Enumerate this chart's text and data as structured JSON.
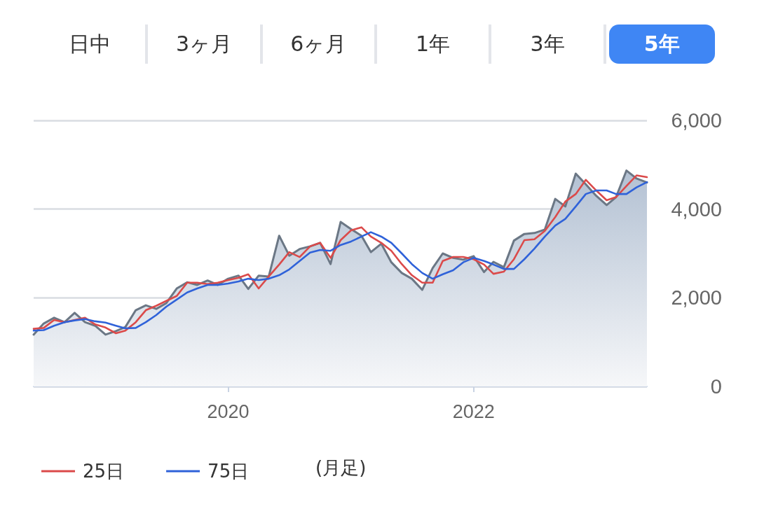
{
  "chart_data": {
    "type": "area",
    "annotations": [
      "日中",
      "3ヶ月",
      "6ヶ月",
      "1年",
      "3年",
      "5年",
      "(月足)"
    ],
    "x": [
      "2018-06",
      "2018-07",
      "2018-08",
      "2018-09",
      "2018-10",
      "2018-11",
      "2018-12",
      "2019-01",
      "2019-02",
      "2019-03",
      "2019-04",
      "2019-05",
      "2019-06",
      "2019-07",
      "2019-08",
      "2019-09",
      "2019-10",
      "2019-11",
      "2019-12",
      "2020-01",
      "2020-02",
      "2020-03",
      "2020-04",
      "2020-05",
      "2020-06",
      "2020-07",
      "2020-08",
      "2020-09",
      "2020-10",
      "2020-11",
      "2020-12",
      "2021-01",
      "2021-02",
      "2021-03",
      "2021-04",
      "2021-05",
      "2021-06",
      "2021-07",
      "2021-08",
      "2021-09",
      "2021-10",
      "2021-11",
      "2021-12",
      "2022-01",
      "2022-02",
      "2022-03",
      "2022-04",
      "2022-05",
      "2022-06",
      "2022-07",
      "2022-08",
      "2022-09",
      "2022-10",
      "2022-11",
      "2022-12",
      "2023-01",
      "2023-02",
      "2023-03",
      "2023-04",
      "2023-05",
      "2023-06"
    ],
    "series": [
      {
        "color": "#6b7785",
        "values": [
          1170,
          1420,
          1550,
          1450,
          1660,
          1450,
          1370,
          1170,
          1250,
          1340,
          1720,
          1830,
          1750,
          1880,
          2210,
          2350,
          2290,
          2390,
          2290,
          2430,
          2500,
          2200,
          2500,
          2480,
          3400,
          2950,
          3100,
          3160,
          3240,
          2760,
          3710,
          3550,
          3400,
          3030,
          3220,
          2800,
          2560,
          2430,
          2180,
          2670,
          3000,
          2900,
          2860,
          2940,
          2580,
          2810,
          2690,
          3290,
          3440,
          3460,
          3540,
          4230,
          4060,
          4800,
          4560,
          4300,
          4090,
          4270,
          4870,
          4690,
          4600
        ]
      },
      {
        "type": "line",
        "name": "25日",
        "color": "#db4a4a",
        "values": [
          1300,
          1320,
          1500,
          1450,
          1500,
          1550,
          1400,
          1330,
          1200,
          1260,
          1450,
          1720,
          1820,
          1930,
          2040,
          2340,
          2340,
          2310,
          2340,
          2400,
          2450,
          2530,
          2210,
          2480,
          2750,
          3030,
          2920,
          3160,
          3240,
          2900,
          3300,
          3520,
          3590,
          3380,
          3240,
          3060,
          2760,
          2510,
          2340,
          2340,
          2830,
          2920,
          2920,
          2870,
          2750,
          2540,
          2590,
          2870,
          3300,
          3320,
          3510,
          3820,
          4170,
          4340,
          4660,
          4420,
          4200,
          4270,
          4520,
          4760,
          4720
        ]
      },
      {
        "type": "line",
        "name": "75日",
        "color": "#2f62d9",
        "values": [
          1260,
          1270,
          1370,
          1450,
          1490,
          1520,
          1470,
          1440,
          1370,
          1310,
          1320,
          1450,
          1610,
          1800,
          1960,
          2120,
          2210,
          2290,
          2290,
          2320,
          2370,
          2430,
          2400,
          2430,
          2510,
          2640,
          2830,
          3020,
          3080,
          3060,
          3190,
          3270,
          3380,
          3480,
          3380,
          3240,
          3000,
          2760,
          2560,
          2430,
          2530,
          2620,
          2800,
          2900,
          2830,
          2750,
          2650,
          2650,
          2870,
          3110,
          3380,
          3630,
          3780,
          4060,
          4340,
          4420,
          4420,
          4340,
          4340,
          4490,
          4610
        ]
      }
    ],
    "xlim": [
      "2018-06-01",
      "2023-06-01"
    ],
    "xticks": [
      "2020",
      "2022"
    ],
    "ylim": [
      0,
      6000
    ],
    "yticks": [
      0,
      {
        "value": 2000,
        "label": "2,000"
      },
      {
        "value": 4000,
        "label": "4,000"
      },
      {
        "value": 6000,
        "label": "6,000"
      }
    ],
    "grid": "y",
    "legend": "bottom left",
    "marker": "none",
    "line_style": "solid"
  }
}
